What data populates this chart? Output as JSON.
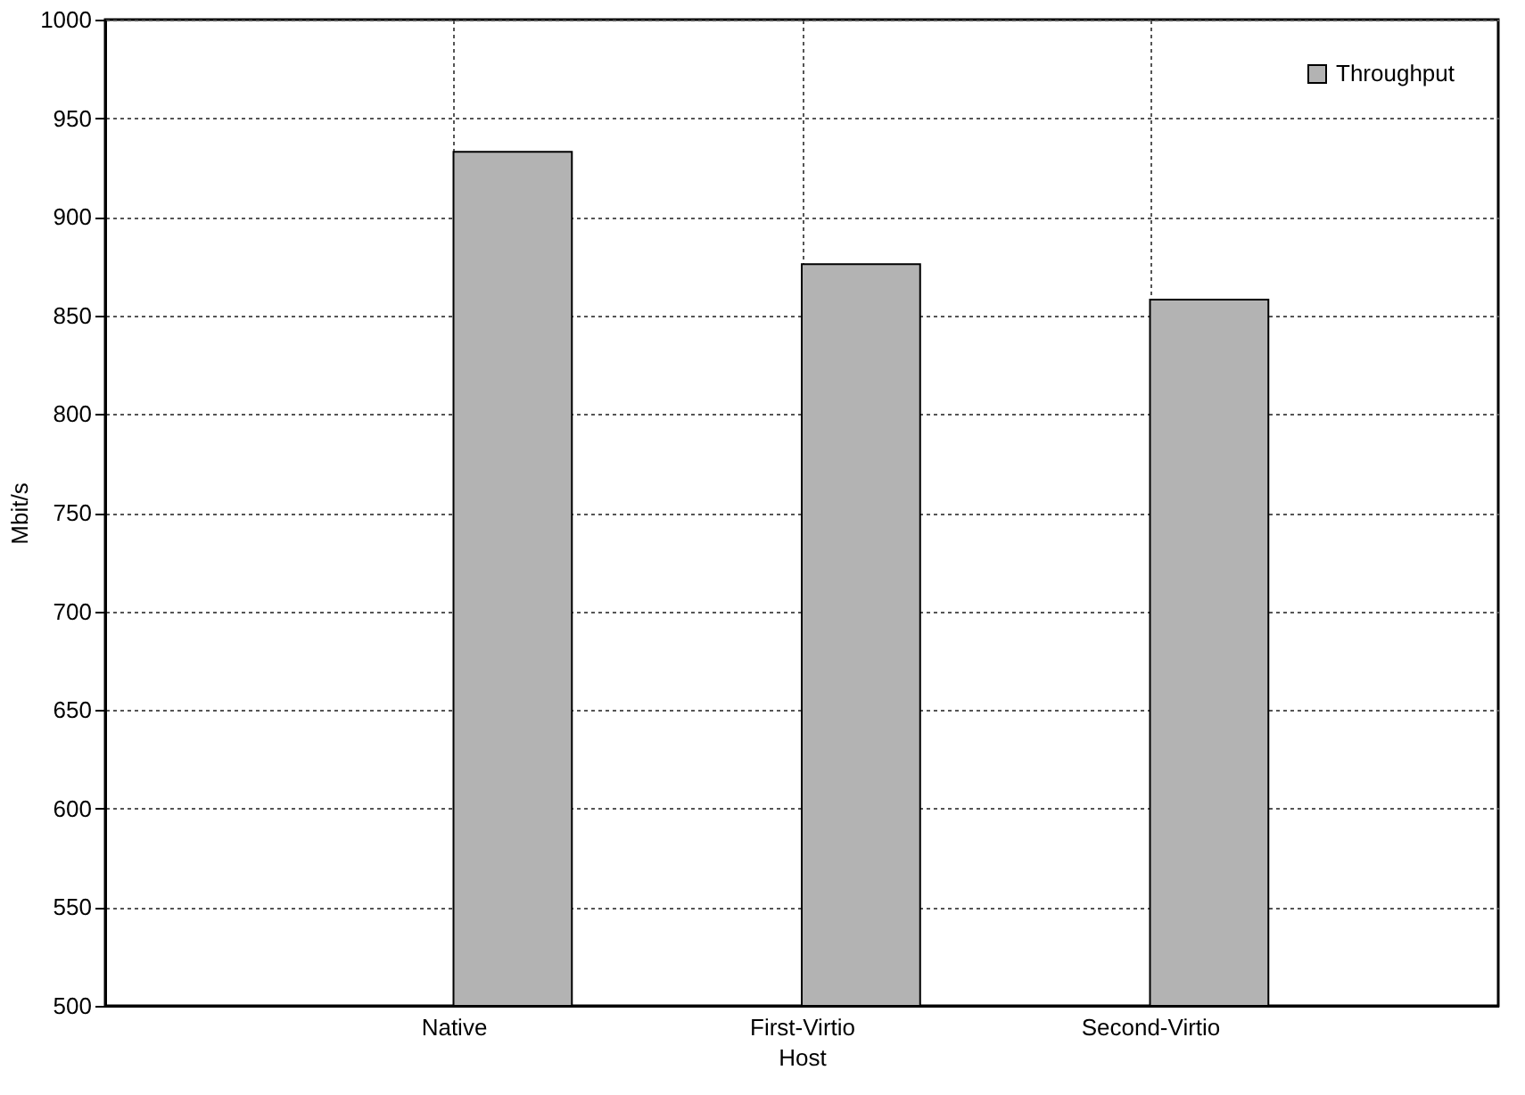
{
  "chart_data": {
    "type": "bar",
    "xlabel": "Host",
    "ylabel": "Mbit/s",
    "categories": [
      "Native",
      "First-Virtio",
      "Second-Virtio"
    ],
    "series": [
      {
        "name": "Throughput",
        "color": "#b3b3b3",
        "values": [
          933,
          876,
          858
        ]
      }
    ],
    "ylim": [
      500,
      1000
    ],
    "yticks": [
      500,
      550,
      600,
      650,
      700,
      750,
      800,
      850,
      900,
      950,
      1000
    ],
    "grid": true,
    "legend": "top right"
  }
}
